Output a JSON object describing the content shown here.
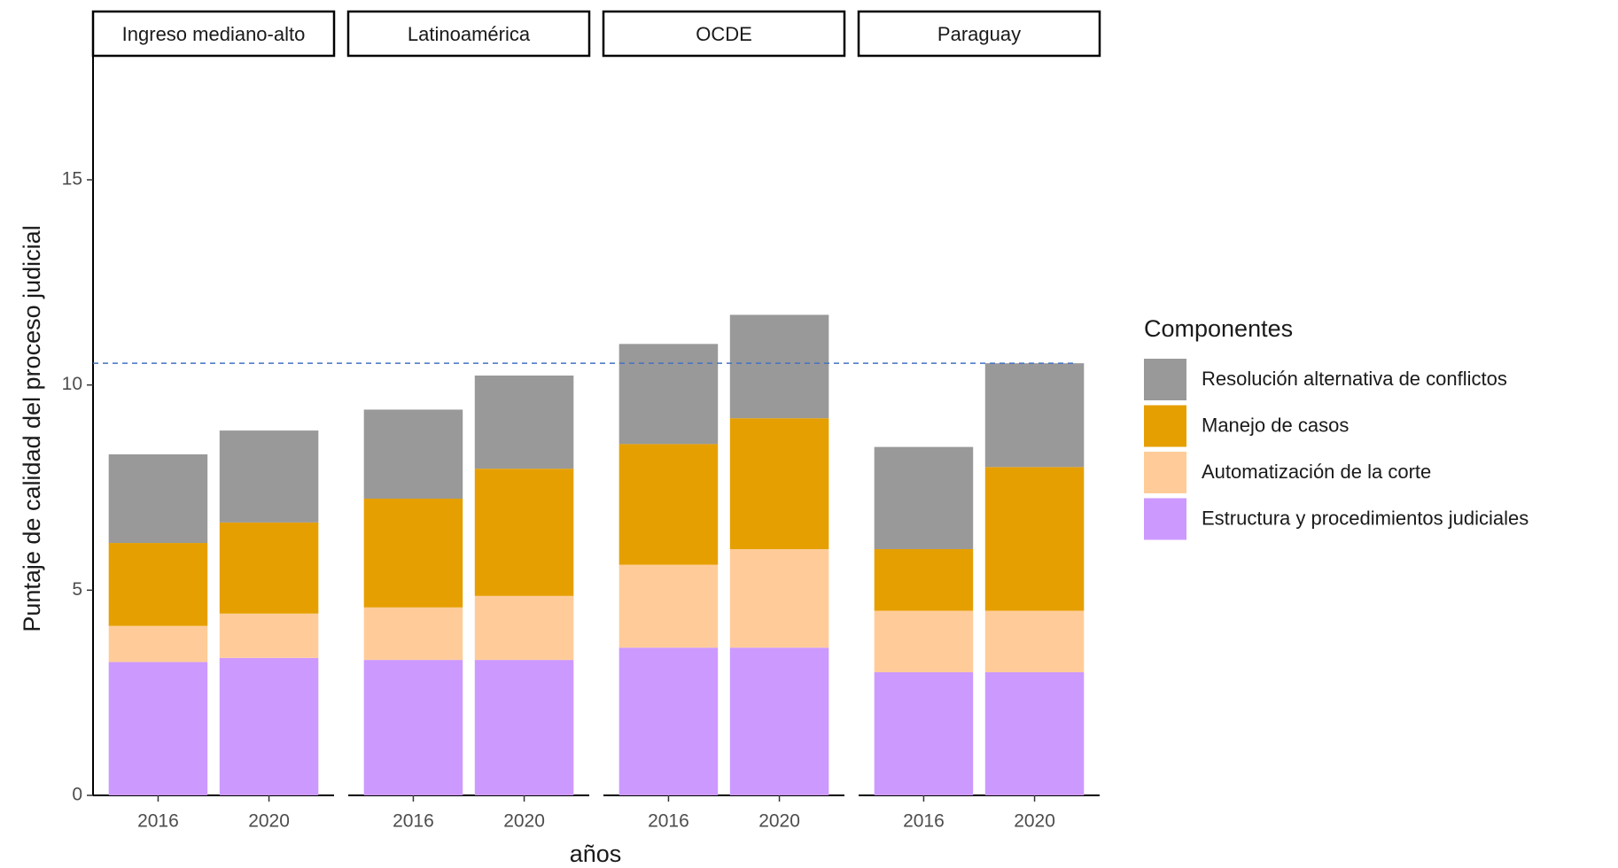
{
  "chart_data": {
    "type": "stacked_bar",
    "y_label": "Puntaje de calidad del proceso judicial",
    "x_label": "años",
    "legend_title": "Componentes",
    "ylim": [
      0,
      18
    ],
    "yticks": [
      0,
      5,
      10,
      15
    ],
    "reference_line": 10.53,
    "panels": [
      {
        "title": "Ingreso mediano-alto",
        "categories": [
          "2016",
          "2020"
        ]
      },
      {
        "title": "Latinoamérica",
        "categories": [
          "2016",
          "2020"
        ]
      },
      {
        "title": "OCDE",
        "categories": [
          "2016",
          "2020"
        ]
      },
      {
        "title": "Paraguay",
        "categories": [
          "2016",
          "2020"
        ]
      }
    ],
    "series": [
      {
        "name": "Estructura y procedimientos judiciales",
        "color": "#cc99ff",
        "values": [
          [
            3.25,
            3.35
          ],
          [
            3.3,
            3.3
          ],
          [
            3.6,
            3.6
          ],
          [
            3.0,
            3.0
          ]
        ]
      },
      {
        "name": "Automatización de la corte",
        "color": "#ffcc99",
        "values": [
          [
            0.88,
            1.08
          ],
          [
            1.28,
            1.56
          ],
          [
            2.02,
            2.4
          ],
          [
            1.5,
            1.5
          ]
        ]
      },
      {
        "name": "Manejo de casos",
        "color": "#e69f00",
        "values": [
          [
            2.02,
            2.22
          ],
          [
            2.65,
            3.1
          ],
          [
            2.94,
            3.19
          ],
          [
            1.5,
            3.5
          ]
        ]
      },
      {
        "name": "Resolución alternativa de conflictos",
        "color": "#999999",
        "values": [
          [
            2.16,
            2.24
          ],
          [
            2.17,
            2.27
          ],
          [
            2.44,
            2.52
          ],
          [
            2.49,
            2.53
          ]
        ]
      }
    ]
  }
}
